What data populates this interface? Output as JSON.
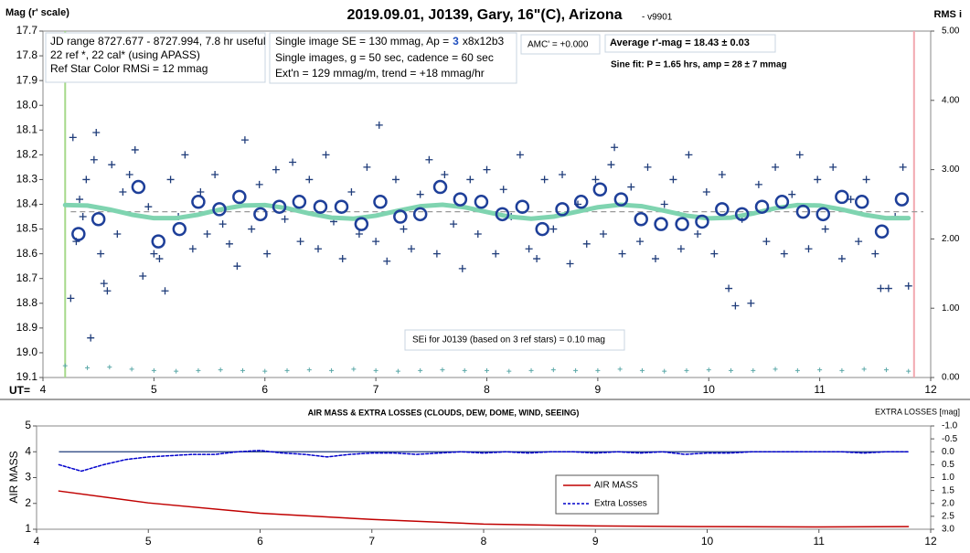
{
  "chart_data": [
    {
      "type": "scatter",
      "title": "2019.09.01, J0139, Gary, 16\"(C), Arizona",
      "subtitle": "- v9901",
      "ylabel": "Mag (r' scale)",
      "y2label": "RMS i",
      "xlabel": "UT=",
      "xlim": [
        4,
        12
      ],
      "xticks": [
        4,
        5,
        6,
        7,
        8,
        9,
        10,
        11,
        12
      ],
      "ylim": [
        19.1,
        17.7
      ],
      "yticks": [
        17.7,
        17.8,
        17.9,
        {
          "value": 18,
          "label": "18.0"
        },
        18.1,
        18.2,
        18.3,
        18.4,
        18.5,
        18.6,
        18.7,
        18.8,
        18.9,
        {
          "value": 19,
          "label": "19.0"
        },
        19.1
      ],
      "y2lim": [
        0,
        5
      ],
      "y2ticks": [
        {
          "value": 0,
          "label": "0.00"
        },
        {
          "value": 1,
          "label": "1.00"
        },
        {
          "value": 2,
          "label": "2.00"
        },
        {
          "value": 3,
          "label": "3.00"
        },
        {
          "value": 4,
          "label": "4.00"
        },
        {
          "value": 5,
          "label": "5.00"
        }
      ],
      "average_line": 18.43,
      "vlines": [
        {
          "x": 4.2,
          "color": "#a6d98a"
        },
        {
          "x": 11.85,
          "color": "#f2a8b0"
        }
      ],
      "annotations": [
        {
          "lines": [
            "JD range 8727.677 - 8727.994, 7.8 hr useful",
            "22 ref *, 22 cal* (using APASS)",
            "Ref Star Color RMSi = 12 mmag"
          ]
        },
        {
          "lines": [
            [
              "Single image SE = 130 mmag, Ap =",
              "3",
              "x8x12b3"
            ],
            "Single images, g = 50 sec, cadence = 60 sec",
            "Ext'n = 129 mmag/m, trend = +18 mmag/hr"
          ]
        },
        {
          "lines": [
            "AMC' = +0.000"
          ]
        },
        {
          "lines": [
            "Average r'-mag =  18.43 ± 0.03"
          ]
        },
        {
          "lines": [
            "Sine fit: P = 1.65 hrs, amp = 28 ± 7 mmag"
          ]
        },
        {
          "lines": [
            "SEi for J0139 (based on 3 ref stars) = 0.10 mag"
          ]
        }
      ],
      "series": [
        {
          "marker": "cross",
          "color": "#1f3c7a",
          "x": [
            4.25,
            4.27,
            4.3,
            4.33,
            4.36,
            4.39,
            4.43,
            4.46,
            4.48,
            4.52,
            4.55,
            4.58,
            4.62,
            4.67,
            4.72,
            4.78,
            4.83,
            4.9,
            4.95,
            5.0,
            5.05,
            5.1,
            5.15,
            5.22,
            5.28,
            5.35,
            5.42,
            5.48,
            5.55,
            5.62,
            5.68,
            5.75,
            5.82,
            5.88,
            5.95,
            6.02,
            6.1,
            6.18,
            6.25,
            6.32,
            6.4,
            6.48,
            6.55,
            6.62,
            6.7,
            6.78,
            6.85,
            6.92,
            7.0,
            7.03,
            7.1,
            7.18,
            7.25,
            7.32,
            7.4,
            7.48,
            7.55,
            7.62,
            7.7,
            7.78,
            7.85,
            7.92,
            8.0,
            8.08,
            8.15,
            8.22,
            8.3,
            8.38,
            8.45,
            8.52,
            8.6,
            8.68,
            8.75,
            8.82,
            8.9,
            8.98,
            9.05,
            9.12,
            9.15,
            9.22,
            9.3,
            9.38,
            9.45,
            9.52,
            9.6,
            9.68,
            9.75,
            9.82,
            9.9,
            9.98,
            10.05,
            10.12,
            10.18,
            10.24,
            10.3,
            10.38,
            10.45,
            10.52,
            10.6,
            10.68,
            10.75,
            10.82,
            10.9,
            10.98,
            11.05,
            11.12,
            11.2,
            11.28,
            11.35,
            11.42,
            11.5,
            11.55,
            11.62,
            11.68,
            11.75,
            11.8
          ],
          "values": [
            18.78,
            18.13,
            18.55,
            18.38,
            18.45,
            18.3,
            18.94,
            18.22,
            18.11,
            18.6,
            18.72,
            18.75,
            18.24,
            18.52,
            18.35,
            18.28,
            18.18,
            18.69,
            18.41,
            18.6,
            18.62,
            18.75,
            18.3,
            18.45,
            18.2,
            18.58,
            18.35,
            18.52,
            18.28,
            18.48,
            18.56,
            18.65,
            18.14,
            18.5,
            18.32,
            18.6,
            18.26,
            18.46,
            18.23,
            18.55,
            18.3,
            18.58,
            18.2,
            18.47,
            18.62,
            18.35,
            18.52,
            18.25,
            18.55,
            18.08,
            18.63,
            18.3,
            18.5,
            18.58,
            18.36,
            18.22,
            18.6,
            18.28,
            18.48,
            18.66,
            18.3,
            18.52,
            18.26,
            18.6,
            18.34,
            18.45,
            18.2,
            18.58,
            18.62,
            18.3,
            18.5,
            18.28,
            18.64,
            18.4,
            18.56,
            18.3,
            18.52,
            18.24,
            18.17,
            18.6,
            18.33,
            18.55,
            18.25,
            18.62,
            18.4,
            18.3,
            18.58,
            18.2,
            18.52,
            18.35,
            18.6,
            18.28,
            18.74,
            18.81,
            18.46,
            18.8,
            18.32,
            18.55,
            18.25,
            18.6,
            18.36,
            18.2,
            18.58,
            18.3,
            18.5,
            18.25,
            18.62,
            18.38,
            18.55,
            18.3,
            18.6,
            18.74,
            18.74,
            18.45,
            18.25,
            18.73
          ]
        },
        {
          "marker": "line",
          "color": "#7fd4b0",
          "x": [
            4.2,
            4.4,
            4.6,
            4.8,
            5.0,
            5.2,
            5.4,
            5.6,
            5.8,
            6.0,
            6.2,
            6.4,
            6.6,
            6.8,
            7.0,
            7.2,
            7.4,
            7.6,
            7.8,
            8.0,
            8.2,
            8.4,
            8.6,
            8.8,
            9.0,
            9.2,
            9.4,
            9.6,
            9.8,
            10.0,
            10.2,
            10.4,
            10.6,
            10.8,
            11.0,
            11.2,
            11.4,
            11.6,
            11.8
          ],
          "values": [
            18.403,
            18.405,
            18.421,
            18.442,
            18.456,
            18.456,
            18.442,
            18.421,
            18.405,
            18.403,
            18.416,
            18.437,
            18.454,
            18.458,
            18.446,
            18.426,
            18.408,
            18.402,
            18.412,
            18.431,
            18.45,
            18.458,
            18.45,
            18.431,
            18.412,
            18.402,
            18.408,
            18.426,
            18.446,
            18.457,
            18.454,
            18.437,
            18.416,
            18.403,
            18.405,
            18.421,
            18.442,
            18.456,
            18.456
          ]
        },
        {
          "marker": "circle",
          "color": "#1e3f99",
          "x": [
            4.32,
            4.5,
            4.86,
            5.04,
            5.23,
            5.4,
            5.59,
            5.77,
            5.96,
            6.13,
            6.31,
            6.5,
            6.69,
            6.87,
            7.04,
            7.22,
            7.4,
            7.58,
            7.76,
            7.95,
            8.14,
            8.32,
            8.5,
            8.68,
            8.85,
            9.02,
            9.21,
            9.39,
            9.57,
            9.76,
            9.94,
            10.12,
            10.3,
            10.48,
            10.66,
            10.85,
            11.03,
            11.2,
            11.38,
            11.56,
            11.74
          ],
          "values": [
            18.52,
            18.46,
            18.33,
            18.55,
            18.5,
            18.39,
            18.42,
            18.37,
            18.44,
            18.41,
            18.39,
            18.41,
            18.41,
            18.48,
            18.39,
            18.45,
            18.44,
            18.33,
            18.38,
            18.39,
            18.44,
            18.41,
            18.5,
            18.42,
            18.39,
            18.34,
            18.38,
            18.46,
            18.48,
            18.48,
            18.47,
            18.42,
            18.44,
            18.41,
            18.39,
            18.43,
            18.44,
            18.37,
            18.39,
            18.51,
            18.38
          ]
        },
        {
          "marker": "small-cross",
          "color": "#5aa8a8",
          "axis": "y2",
          "x": [
            4.2,
            4.4,
            4.6,
            4.8,
            5.0,
            5.2,
            5.4,
            5.6,
            5.8,
            6.0,
            6.2,
            6.4,
            6.6,
            6.8,
            7.0,
            7.2,
            7.4,
            7.6,
            7.8,
            8.0,
            8.2,
            8.4,
            8.6,
            8.8,
            9.0,
            9.2,
            9.4,
            9.6,
            9.8,
            10.0,
            10.2,
            10.4,
            10.6,
            10.8,
            11.0,
            11.2,
            11.4,
            11.6,
            11.8
          ],
          "values": [
            0.17,
            0.14,
            0.15,
            0.12,
            0.1,
            0.09,
            0.1,
            0.11,
            0.1,
            0.09,
            0.1,
            0.11,
            0.1,
            0.12,
            0.1,
            0.09,
            0.1,
            0.11,
            0.1,
            0.1,
            0.09,
            0.1,
            0.11,
            0.1,
            0.1,
            0.12,
            0.1,
            0.09,
            0.1,
            0.11,
            0.1,
            0.1,
            0.12,
            0.1,
            0.11,
            0.1,
            0.12,
            0.11,
            0.09
          ]
        }
      ]
    },
    {
      "type": "line",
      "title": "AIR MASS & EXTRA LOSSES (CLOUDS, DEW, DOME, WIND, SEEING)",
      "ylabel": "AIR MASS",
      "y2label": "EXTRA LOSSES [mag]",
      "xlim": [
        4,
        12
      ],
      "xticks": [
        4,
        5,
        6,
        7,
        8,
        9,
        10,
        11,
        12
      ],
      "ylim": [
        1,
        5
      ],
      "yticks": [
        1,
        2,
        3,
        4,
        5
      ],
      "y2lim": [
        3,
        -1
      ],
      "y2ticks": [
        {
          "value": -1,
          "label": "-1.0"
        },
        -0.5,
        {
          "value": 0,
          "label": "0.0"
        },
        0.5,
        {
          "value": 1,
          "label": "1.0"
        },
        1.5,
        {
          "value": 2,
          "label": "2.0"
        },
        2.5,
        {
          "value": 3,
          "label": "3.0"
        }
      ],
      "reference_line": {
        "value": 0,
        "axis": "y2",
        "color": "#1f3c7a"
      },
      "series": [
        {
          "name": "AIR MASS",
          "marker": "line",
          "line_style": "solid",
          "color": "#c00000",
          "x": [
            4.2,
            5,
            6,
            7,
            8,
            9,
            10,
            11,
            11.8
          ],
          "values": [
            2.48,
            2.02,
            1.62,
            1.38,
            1.2,
            1.13,
            1.1,
            1.09,
            1.1
          ]
        },
        {
          "name": "Extra Losses",
          "marker": "line",
          "line_style": "dashed",
          "color": "#0000cc",
          "axis": "y2",
          "x": [
            4.2,
            4.4,
            4.6,
            4.8,
            5.0,
            5.2,
            5.4,
            5.6,
            5.8,
            6.0,
            6.2,
            6.4,
            6.6,
            6.8,
            7.0,
            7.2,
            7.4,
            7.6,
            7.8,
            8.0,
            8.2,
            8.4,
            8.6,
            8.8,
            9.0,
            9.2,
            9.4,
            9.6,
            9.8,
            10.0,
            10.2,
            10.4,
            10.6,
            10.8,
            11.0,
            11.2,
            11.4,
            11.6,
            11.8
          ],
          "values": [
            0.5,
            0.75,
            0.5,
            0.3,
            0.2,
            0.15,
            0.1,
            0.1,
            0.0,
            -0.05,
            0.05,
            0.1,
            0.2,
            0.1,
            0.05,
            0.05,
            0.1,
            0.05,
            0.0,
            0.05,
            0.0,
            0.05,
            0.0,
            0.0,
            0.05,
            0.0,
            0.05,
            0.0,
            0.1,
            0.05,
            0.05,
            0.0,
            0.0,
            0.0,
            0.0,
            0.0,
            0.05,
            0.0,
            0.0
          ]
        }
      ]
    }
  ]
}
